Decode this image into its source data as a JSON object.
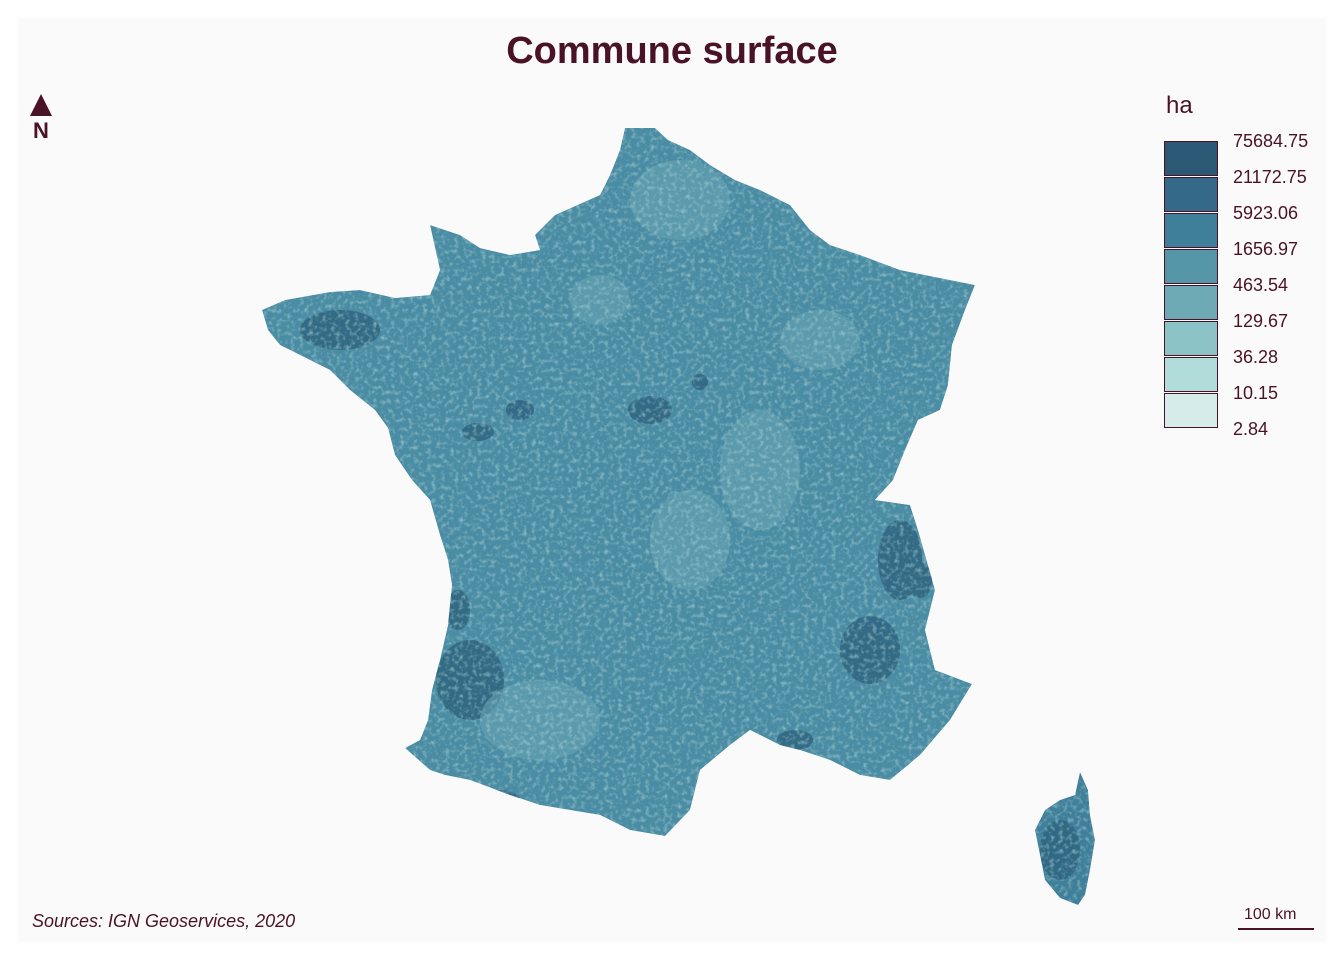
{
  "title": "Commune surface",
  "north_label": "N",
  "legend": {
    "title": "ha",
    "breaks": [
      "75684.75",
      "21172.75",
      "5923.06",
      "1656.97",
      "463.54",
      "129.67",
      "36.28",
      "10.15",
      "2.84"
    ],
    "colors": [
      "#2b5874",
      "#34698a",
      "#3f7f99",
      "#5595a8",
      "#6eaab6",
      "#8cc3c6",
      "#b0dcda",
      "#d6ecea"
    ]
  },
  "source": "Sources: IGN Geoservices, 2020",
  "scale_label": "100 km",
  "colors": {
    "text": "#4a1226",
    "background": "#fafafa",
    "land_base": "#4a8ca3"
  }
}
